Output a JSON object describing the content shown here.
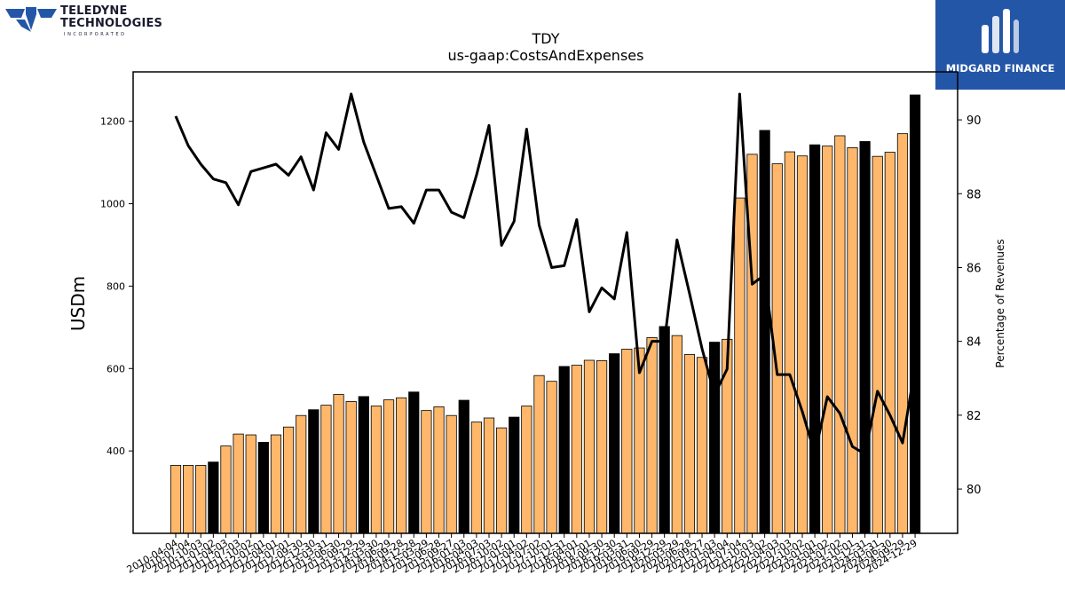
{
  "brand": {
    "left_line1": "TELEDYNE",
    "left_line2": "TECHNOLOGIES",
    "left_sub": "INCORPORATED",
    "right_name": "MIDGARD FINANCE",
    "right_color": "#2456a8"
  },
  "chart_data": {
    "type": "bar",
    "title": "TDY",
    "subtitle": "us-gaap:CostsAndExpenses",
    "ylabel": "USDm",
    "y2label": "Percentage of Revenues",
    "ylim": [
      200,
      1320
    ],
    "y2lim": [
      78.8,
      91.3
    ],
    "yticks": [
      400,
      600,
      800,
      1000,
      1200
    ],
    "y2ticks": [
      80,
      82,
      84,
      86,
      88,
      90
    ],
    "bar_color": "#ffb86b",
    "highlight_color": "#000000",
    "line_color": "#000000",
    "categories": [
      "2010-04-04",
      "2010-07-04",
      "2010-10-03",
      "2011-01-02",
      "2011-04-03",
      "2011-07-03",
      "2011-10-02",
      "2012-01-01",
      "2012-04-01",
      "2012-07-01",
      "2012-09-30",
      "2012-12-30",
      "2013-03-31",
      "2013-06-30",
      "2013-09-29",
      "2013-12-29",
      "2014-03-30",
      "2014-06-29",
      "2014-09-28",
      "2014-12-28",
      "2015-03-29",
      "2015-06-28",
      "2015-09-27",
      "2016-01-03",
      "2016-04-03",
      "2016-07-03",
      "2016-10-02",
      "2017-01-01",
      "2017-04-02",
      "2017-07-02",
      "2017-10-01",
      "2017-12-31",
      "2018-04-01",
      "2018-07-01",
      "2018-09-30",
      "2018-12-30",
      "2019-03-31",
      "2019-06-30",
      "2019-09-29",
      "2019-12-29",
      "2020-03-29",
      "2020-06-28",
      "2020-09-27",
      "2021-01-03",
      "2021-04-04",
      "2021-07-04",
      "2021-10-03",
      "2022-01-02",
      "2022-04-03",
      "2022-07-03",
      "2022-10-02",
      "2023-01-01",
      "2023-04-02",
      "2023-07-02",
      "2023-10-01",
      "2023-12-31",
      "2024-03-31",
      "2024-06-30",
      "2024-09-29",
      "2024-12-29"
    ],
    "values": [
      365,
      365,
      365,
      373,
      412,
      441,
      439,
      421,
      439,
      458,
      486,
      500,
      511,
      537,
      520,
      532,
      509,
      524,
      529,
      543,
      498,
      507,
      486,
      523,
      470,
      480,
      456,
      482,
      509,
      583,
      569,
      605,
      608,
      620,
      619,
      636,
      647,
      650,
      675,
      702,
      680,
      634,
      627,
      664,
      671,
      1014,
      1120,
      1178,
      1097,
      1126,
      1116,
      1143,
      1140,
      1165,
      1136,
      1151,
      1115,
      1125,
      1170,
      1264
    ],
    "highlighted": [
      false,
      false,
      false,
      true,
      false,
      false,
      false,
      true,
      false,
      false,
      false,
      true,
      false,
      false,
      false,
      true,
      false,
      false,
      false,
      true,
      false,
      false,
      false,
      true,
      false,
      false,
      false,
      true,
      false,
      false,
      false,
      true,
      false,
      false,
      false,
      true,
      false,
      false,
      false,
      true,
      false,
      false,
      false,
      true,
      false,
      false,
      false,
      true,
      false,
      false,
      false,
      true,
      false,
      false,
      false,
      true,
      false,
      false,
      false,
      true
    ],
    "series": [
      {
        "values": [
          90.1,
          89.3,
          88.8,
          88.4,
          88.3,
          87.7,
          88.6,
          88.7,
          88.8,
          88.5,
          89.0,
          88.1,
          89.65,
          89.2,
          90.7,
          89.4,
          88.5,
          87.6,
          87.65,
          87.2,
          88.1,
          88.1,
          87.5,
          87.35,
          88.5,
          89.85,
          86.6,
          87.25,
          89.75,
          87.15,
          86.0,
          86.05,
          87.3,
          84.8,
          85.45,
          85.15,
          86.95,
          83.15,
          84.0,
          84.0,
          86.75,
          85.3,
          83.8,
          82.55,
          83.25,
          90.7,
          85.55,
          85.8,
          83.1,
          83.1,
          82.1,
          80.95,
          82.5,
          82.05,
          81.15,
          80.95,
          82.65,
          82.0,
          81.25,
          83.3
        ]
      }
    ]
  }
}
